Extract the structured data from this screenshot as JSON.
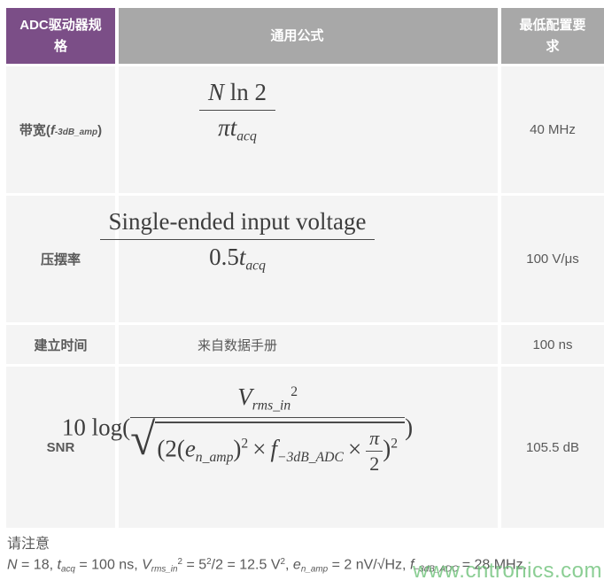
{
  "table": {
    "header": {
      "col1": "ADC驱动器规格",
      "col2": "通用公式",
      "col3": "最低配置要求"
    }
  },
  "rows": {
    "bandwidth": {
      "label_pre": "带宽(",
      "label_var": "f",
      "label_sub": "-3dB_amp",
      "label_close": ")",
      "value": "40 MHz",
      "formula": {
        "num_N": "N",
        "num_ln2": " ln 2",
        "den_pi": "π",
        "den_t": "t",
        "den_sub": "acq"
      }
    },
    "slew_rate": {
      "label": "压摆率",
      "value": "100 V/μs",
      "formula": {
        "num": "Single-ended input voltage",
        "den_coeff": "0.5",
        "den_t": "t",
        "den_sub": "acq"
      }
    },
    "settling_time": {
      "label": "建立时间",
      "formula_text": "来自数据手册",
      "value": "100 ns"
    },
    "snr": {
      "label": "SNR",
      "value": "105.5 dB",
      "formula": {
        "prefix": "10 log(",
        "num_V": "V",
        "num_V_sub": "rms_in",
        "num_V_sup": "2",
        "radical": "√",
        "d1": "(2(",
        "e": "e",
        "e_sub": "n_amp",
        "d2": ")",
        "e_sup": "2",
        "times1": "×",
        "f": "f",
        "f_sub": "−3dB_ADC",
        "times2": "×",
        "pi": "π",
        "two": "2",
        "d3": ")",
        "outer_sup": "2",
        "close": ")"
      }
    }
  },
  "note": {
    "title": "请注意",
    "eq": {
      "N": "N",
      "s1": " = 18, ",
      "t": "t",
      "t_sub": "acq",
      "s2": " = 100 ns, ",
      "V": "V",
      "V_sub": "rms_in",
      "V_sup": "2",
      "s3": " = 5",
      "five_sup": "2",
      "s4": "/2 = 12.5 V",
      "v2_sup": "2",
      "s5": ", ",
      "e": "e",
      "e_sub": "n_amp",
      "s6": " = 2 nV/√Hz, ",
      "f": "f",
      "f_sub": "−3dB_ADC",
      "s7": " = 28 MHz."
    }
  },
  "watermark": "www.cntronics.com",
  "colors": {
    "header_purple": "#7b4e87",
    "header_gray": "#a8a8a8",
    "cell_bg": "#f4f4f4",
    "text": "#595959",
    "watermark_green": "#6fc27a"
  }
}
